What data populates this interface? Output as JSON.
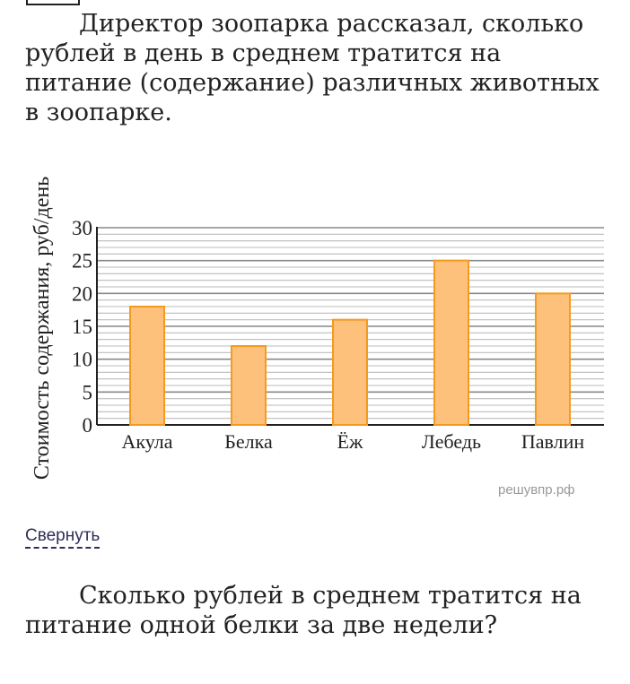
{
  "intro_text": "Директор зоопарка рассказал, сколько рублей в день в среднем тратится на питание (содержание) различных животных в зоопарке.",
  "chart_data": {
    "type": "bar",
    "categories": [
      "Акула",
      "Белка",
      "Ёж",
      "Лебедь",
      "Павлин"
    ],
    "values": [
      18,
      12,
      16,
      25,
      20
    ],
    "ylabel": "Стоимость содержания, руб/день",
    "xlabel": "",
    "ylim": [
      0,
      30
    ],
    "yticks": [
      0,
      5,
      10,
      15,
      20,
      25,
      30
    ],
    "grid": true,
    "minor_grid_step": 1,
    "bar_fill": "#fdc17c",
    "bar_stroke": "#f59a1e"
  },
  "watermark": "решувпр.рф",
  "collapse_link": "Свернуть",
  "question_text": "Сколько рублей в среднем тратится на питание одной белки за две недели?"
}
